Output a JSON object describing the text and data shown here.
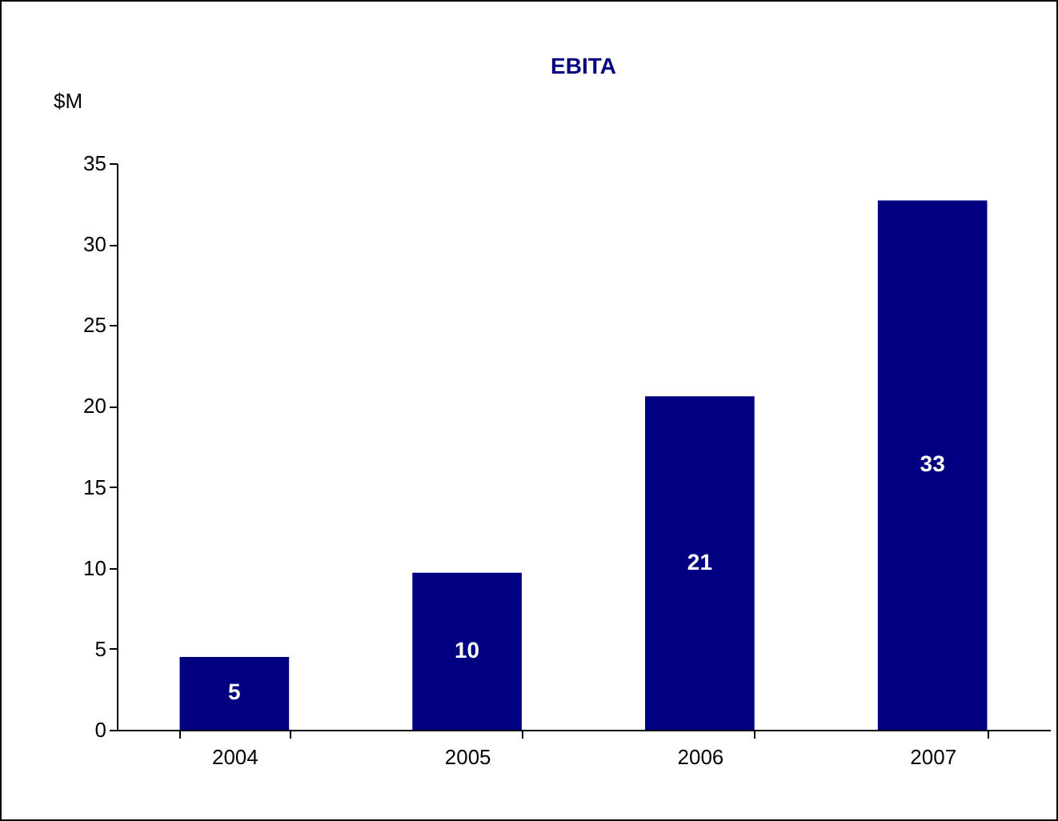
{
  "chart_data": {
    "type": "bar",
    "title": "EBITA",
    "ylabel": "$M",
    "categories": [
      "2004",
      "2005",
      "2006",
      "2007"
    ],
    "values": [
      4.5,
      9.7,
      20.6,
      32.7
    ],
    "value_labels": [
      "5",
      "10",
      "21",
      "33"
    ],
    "color": "#000080",
    "ylim": [
      0,
      35
    ],
    "yticks": [
      0,
      5,
      10,
      15,
      20,
      25,
      30,
      35
    ],
    "grid": false
  }
}
